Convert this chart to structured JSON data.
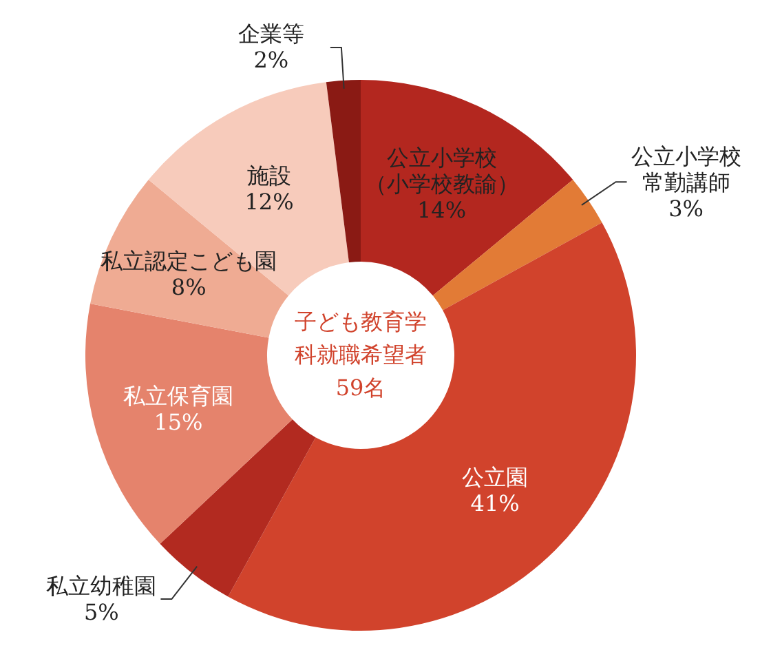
{
  "chart_data": {
    "type": "donut",
    "title": "子ども教育学科就職希望者59名",
    "categories": [
      "公立小学校（小学校教諭）",
      "公立小学校常勤講師",
      "公立園",
      "私立幼稚園",
      "私立保育園",
      "私立認定こども園",
      "施設",
      "企業等"
    ],
    "values": [
      14,
      3,
      41,
      5,
      15,
      8,
      12,
      2
    ],
    "value_labels": [
      "14%",
      "3%",
      "41%",
      "5%",
      "15%",
      "8%",
      "12%",
      "2%"
    ],
    "colors": [
      "#b3271f",
      "#e27b36",
      "#d1432c",
      "#b22a20",
      "#e5836c",
      "#efab93",
      "#f7cbbb",
      "#8a1a14"
    ]
  }
}
